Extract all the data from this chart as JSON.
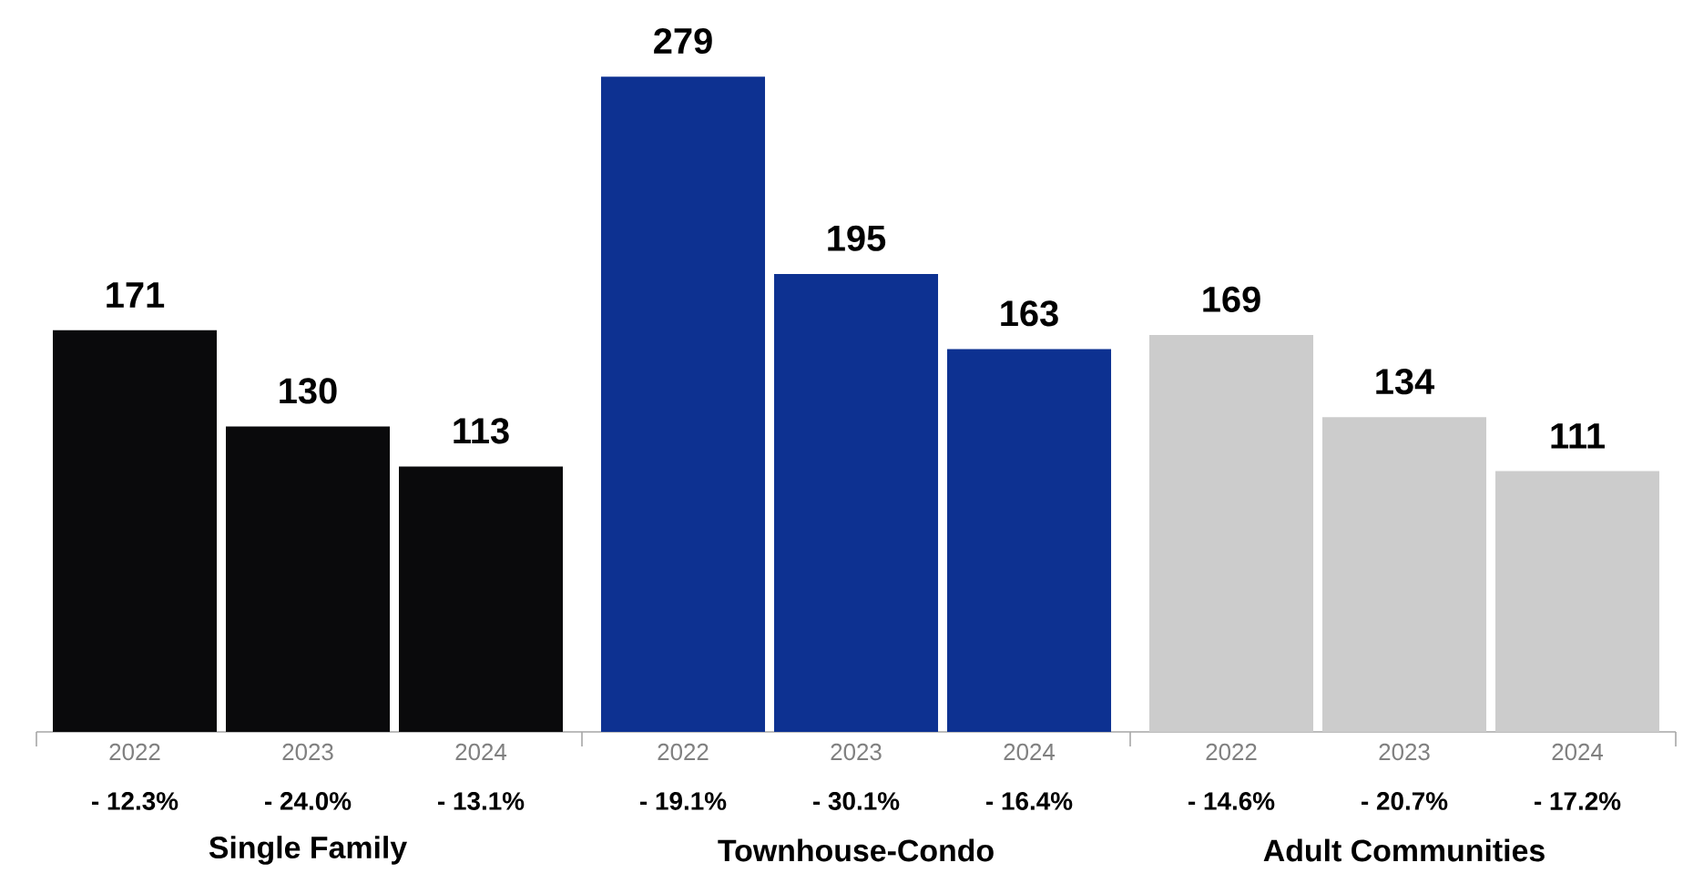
{
  "chart_data": {
    "type": "bar",
    "categories": [
      "2022",
      "2023",
      "2024",
      "2022",
      "2023",
      "2024",
      "2022",
      "2023",
      "2024"
    ],
    "values": [
      171,
      130,
      113,
      279,
      195,
      163,
      169,
      134,
      111
    ],
    "colors": [
      "#0a0a0c",
      "#0a0a0c",
      "#0a0a0c",
      "#0d3191",
      "#0d3191",
      "#0d3191",
      "#cccccc",
      "#cccccc",
      "#cccccc"
    ],
    "data_labels": true,
    "annotations": [
      "- 12.3%",
      "- 24.0%",
      "- 13.1%",
      "- 19.1%",
      "- 30.1%",
      "- 16.4%",
      "- 14.6%",
      "- 20.7%",
      "- 17.2%",
      "Single Family",
      "Townhouse-Condo",
      "Adult Communities"
    ]
  }
}
